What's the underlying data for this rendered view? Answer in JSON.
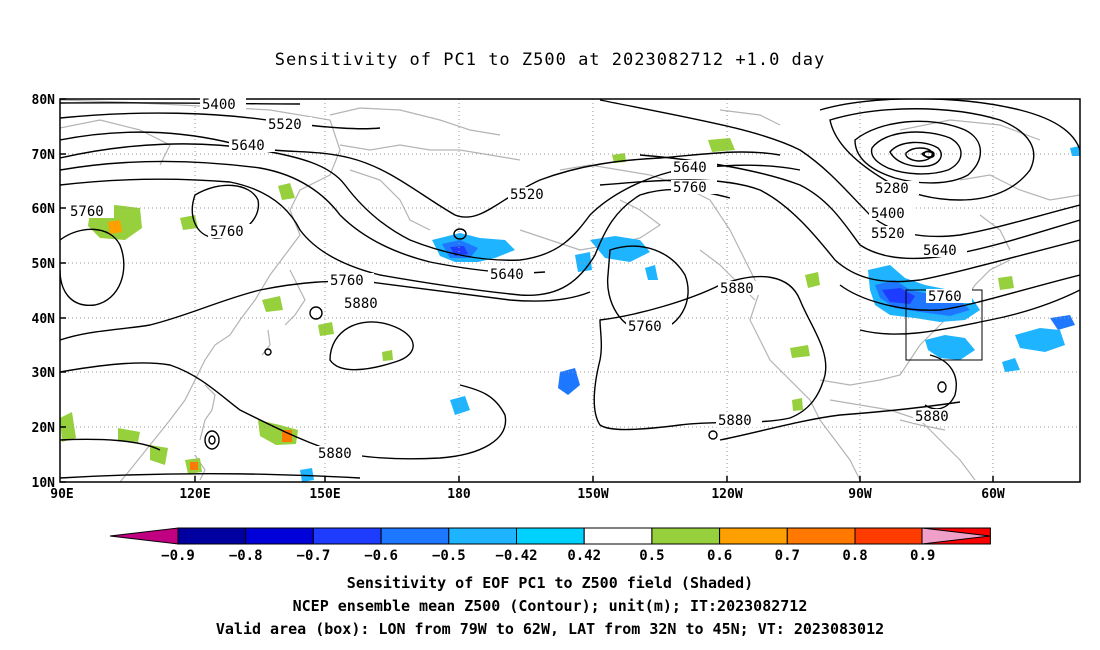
{
  "title": "Sensitivity of PC1 to Z500 at 2023082712 +1.0 day",
  "map": {
    "lat_labels": [
      "80N",
      "70N",
      "60N",
      "50N",
      "40N",
      "30N",
      "20N",
      "10N"
    ],
    "lon_labels": [
      "90E",
      "120E",
      "150E",
      "180",
      "150W",
      "120W",
      "90W",
      "60W"
    ],
    "contour_labels": [
      "5400",
      "5520",
      "5640",
      "5280",
      "5760",
      "5880"
    ],
    "valid_box": {
      "lon_from": "79W",
      "lon_to": "62W",
      "lat_from": "32N",
      "lat_to": "45N"
    }
  },
  "colorbar": {
    "colors": [
      "#c00080",
      "#0000a0",
      "#0000d8",
      "#1e3cff",
      "#1e78ff",
      "#1eb4ff",
      "#00d2ff",
      "#ffffff",
      "#96d03c",
      "#ffa000",
      "#ff7800",
      "#ff3c00",
      "#ff0000",
      "#f0a0c8"
    ],
    "labels": [
      "−0.9",
      "−0.8",
      "−0.7",
      "−0.6",
      "−0.5",
      "−0.42",
      "0.42",
      "0.5",
      "0.6",
      "0.7",
      "0.8",
      "0.9"
    ]
  },
  "footer": {
    "line1": "Sensitivity of EOF PC1 to Z500 field (Shaded)",
    "line2": "NCEP ensemble mean Z500 (Contour); unit(m); IT:2023082712",
    "line3": "Valid area (box): LON from 79W to 62W, LAT from 32N to 45N; VT: 2023083012"
  }
}
